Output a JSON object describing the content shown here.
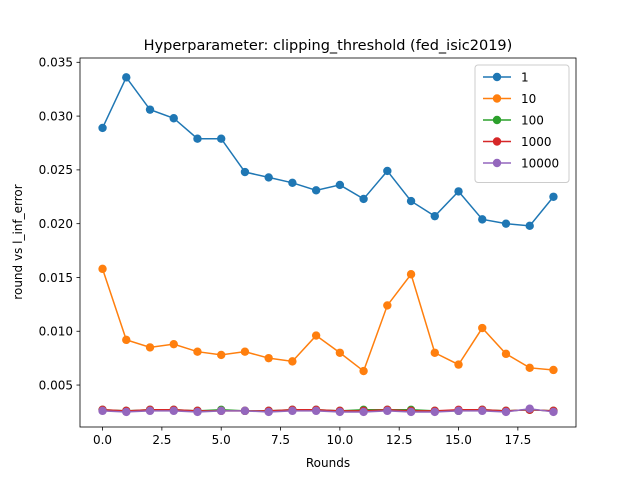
{
  "chart_data": {
    "type": "line",
    "title": "Hyperparameter: clipping_threshold (fed_isic2019)",
    "xlabel": "Rounds",
    "ylabel": "round vs l_inf_error",
    "xlim": [
      -0.95,
      19.95
    ],
    "ylim": [
      0.0011,
      0.0354
    ],
    "xticks": [
      0,
      2.5,
      5,
      7.5,
      10,
      12.5,
      15,
      17.5
    ],
    "xtick_labels": [
      "0.0",
      "2.5",
      "5.0",
      "7.5",
      "10.0",
      "12.5",
      "15.0",
      "17.5"
    ],
    "yticks": [
      0.005,
      0.01,
      0.015,
      0.02,
      0.025,
      0.03,
      0.035
    ],
    "ytick_labels": [
      "0.005",
      "0.010",
      "0.015",
      "0.020",
      "0.025",
      "0.030",
      "0.035"
    ],
    "grid": false,
    "legend_position": "top-right",
    "x": [
      0,
      1,
      2,
      3,
      4,
      5,
      6,
      7,
      8,
      9,
      10,
      11,
      12,
      13,
      14,
      15,
      16,
      17,
      18,
      19
    ],
    "series": [
      {
        "name": "1",
        "color": "#1f77b4",
        "values": [
          0.0289,
          0.0336,
          0.0306,
          0.0298,
          0.0279,
          0.0279,
          0.0248,
          0.0243,
          0.0238,
          0.0231,
          0.0236,
          0.0223,
          0.0249,
          0.0221,
          0.0207,
          0.023,
          0.0204,
          0.02,
          0.0198,
          0.0225
        ]
      },
      {
        "name": "10",
        "color": "#ff7f0e",
        "values": [
          0.0158,
          0.0092,
          0.0085,
          0.0088,
          0.0081,
          0.0078,
          0.0081,
          0.0075,
          0.0072,
          0.0096,
          0.008,
          0.0063,
          0.0124,
          0.0153,
          0.008,
          0.0069,
          0.0103,
          0.0079,
          0.0066,
          0.0064
        ]
      },
      {
        "name": "100",
        "color": "#2ca02c",
        "values": [
          0.0027,
          0.0026,
          0.0027,
          0.0027,
          0.0026,
          0.0027,
          0.0026,
          0.0026,
          0.0027,
          0.0027,
          0.0026,
          0.0027,
          0.0027,
          0.0027,
          0.0026,
          0.0026,
          0.0027,
          0.0026,
          0.0027,
          0.0026
        ]
      },
      {
        "name": "1000",
        "color": "#d62728",
        "values": [
          0.0027,
          0.0026,
          0.0027,
          0.0027,
          0.0026,
          0.0026,
          0.0026,
          0.0026,
          0.0027,
          0.0027,
          0.0026,
          0.0026,
          0.0027,
          0.0026,
          0.0026,
          0.0027,
          0.0027,
          0.0026,
          0.0027,
          0.0026
        ]
      },
      {
        "name": "10000",
        "color": "#9467bd",
        "values": [
          0.0026,
          0.0025,
          0.0026,
          0.0026,
          0.0025,
          0.0026,
          0.0026,
          0.0025,
          0.0026,
          0.0026,
          0.0025,
          0.0025,
          0.0026,
          0.0025,
          0.0025,
          0.0026,
          0.0026,
          0.0025,
          0.0028,
          0.0025
        ]
      }
    ]
  }
}
